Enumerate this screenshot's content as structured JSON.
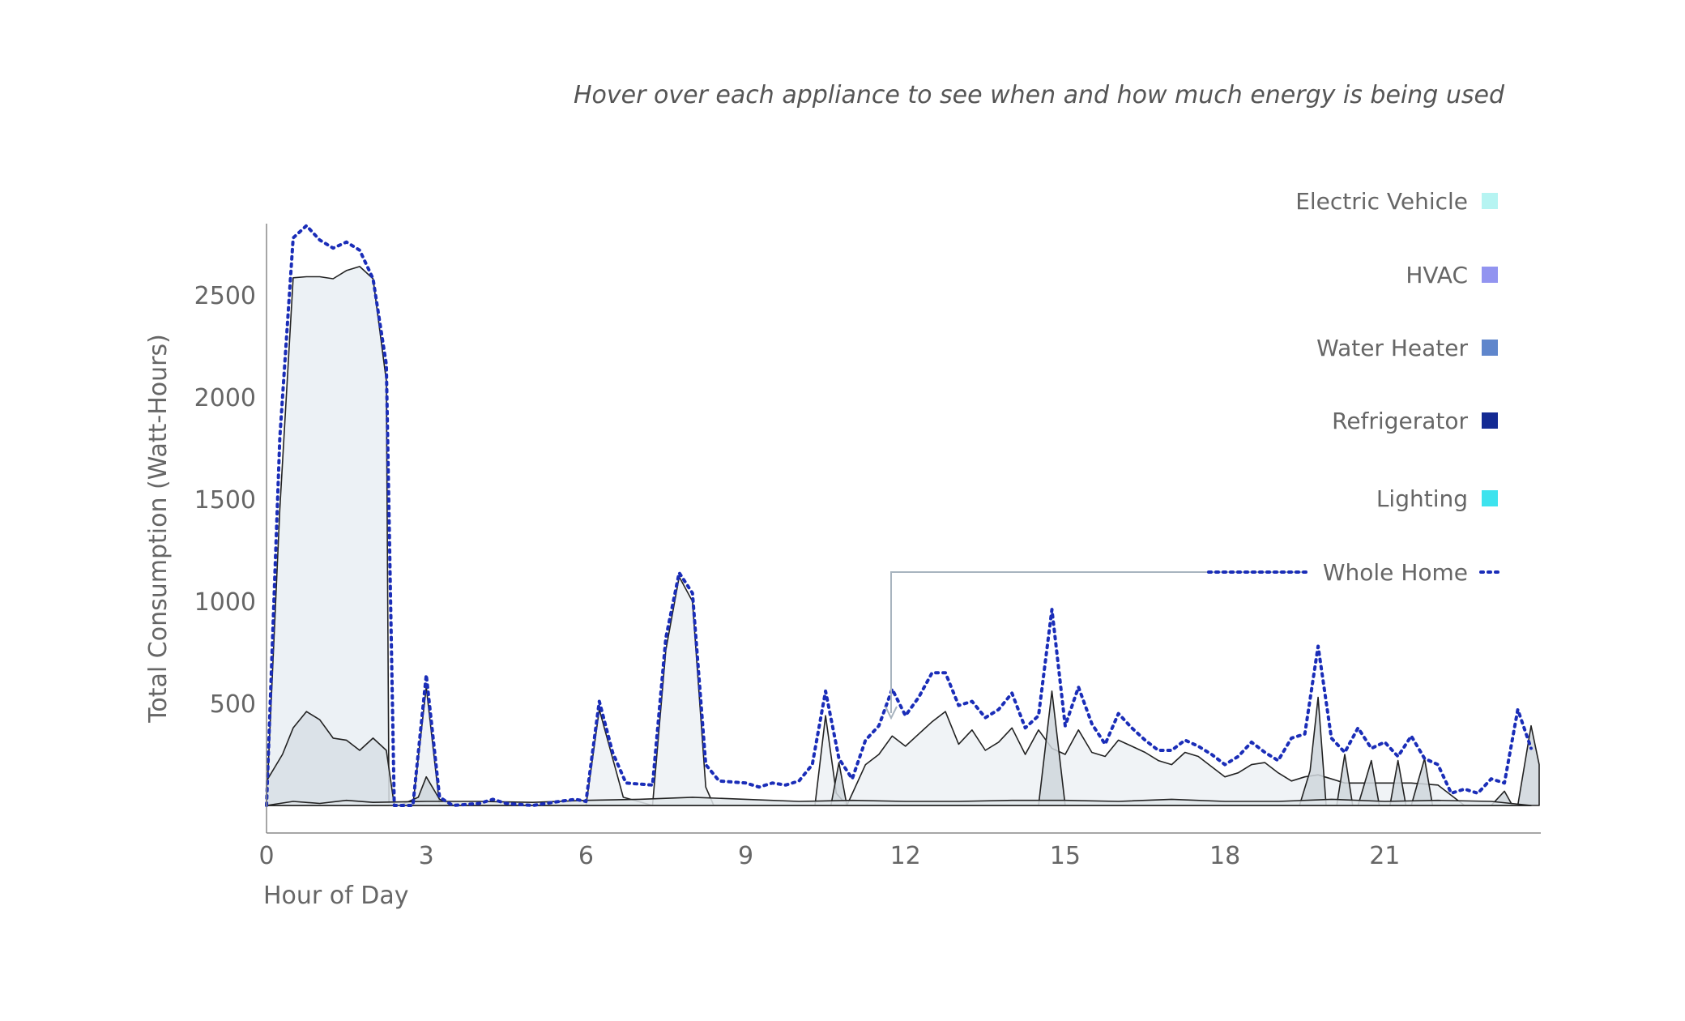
{
  "subtitle": "Hover over each appliance to see when and how much energy is being used",
  "chart_data": {
    "type": "area",
    "title": "",
    "subtitle": "Hover over each appliance to see when and how much energy is being used",
    "xlabel": "Hour of Day",
    "ylabel": "Total Consumption (Watt-Hours)",
    "xlim": [
      0,
      23.75
    ],
    "ylim": [
      0,
      2850
    ],
    "x_ticks": [
      0,
      3,
      6,
      9,
      12,
      15,
      18,
      21
    ],
    "y_ticks": [
      500,
      1000,
      1500,
      2000,
      2500
    ],
    "legend_position": "right",
    "legend": [
      {
        "name": "Electric Vehicle",
        "color": "#b6f4f2"
      },
      {
        "name": "HVAC",
        "color": "#9294f0"
      },
      {
        "name": "Water Heater",
        "color": "#5f86cc"
      },
      {
        "name": "Refrigerator",
        "color": "#142a93"
      },
      {
        "name": "Lighting",
        "color": "#3de3ee"
      },
      {
        "name": "Whole Home",
        "color": "#1a2db8"
      }
    ],
    "series": [
      {
        "name": "Electric Vehicle",
        "color": "#e9eef3",
        "points": [
          [
            0,
            0
          ],
          [
            0.25,
            1450
          ],
          [
            0.5,
            2585
          ],
          [
            0.75,
            2590
          ],
          [
            1,
            2590
          ],
          [
            1.25,
            2580
          ],
          [
            1.5,
            2620
          ],
          [
            1.75,
            2640
          ],
          [
            2,
            2580
          ],
          [
            2.25,
            2080
          ],
          [
            2.3,
            0
          ]
        ]
      },
      {
        "name": "HVAC",
        "color": "#d8dfe5",
        "points": [
          [
            0,
            120
          ],
          [
            0.3,
            250
          ],
          [
            0.5,
            380
          ],
          [
            0.75,
            460
          ],
          [
            1,
            420
          ],
          [
            1.25,
            330
          ],
          [
            1.5,
            320
          ],
          [
            1.75,
            270
          ],
          [
            2,
            330
          ],
          [
            2.25,
            270
          ],
          [
            2.4,
            0
          ]
        ]
      },
      {
        "name": "Water Heater",
        "color": "#edf1f5",
        "points": [
          [
            2.75,
            0
          ],
          [
            3,
            580
          ],
          [
            3.25,
            0
          ],
          [
            6,
            0
          ],
          [
            6.25,
            470
          ],
          [
            6.7,
            40
          ],
          [
            7.25,
            0
          ],
          [
            7.5,
            760
          ],
          [
            7.75,
            1120
          ],
          [
            8,
            1000
          ],
          [
            8.25,
            90
          ],
          [
            8.4,
            0
          ],
          [
            10.3,
            0
          ],
          [
            10.5,
            440
          ],
          [
            10.7,
            60
          ],
          [
            10.9,
            0
          ],
          [
            11.25,
            200
          ],
          [
            11.5,
            250
          ],
          [
            11.75,
            340
          ],
          [
            12,
            290
          ],
          [
            12.25,
            350
          ],
          [
            12.5,
            410
          ],
          [
            12.75,
            460
          ],
          [
            13,
            300
          ],
          [
            13.25,
            370
          ],
          [
            13.5,
            270
          ],
          [
            13.75,
            310
          ],
          [
            14,
            380
          ],
          [
            14.25,
            250
          ],
          [
            14.5,
            370
          ],
          [
            14.75,
            280
          ],
          [
            15,
            250
          ],
          [
            15.25,
            370
          ],
          [
            15.5,
            260
          ],
          [
            15.75,
            240
          ],
          [
            16,
            320
          ],
          [
            16.25,
            290
          ],
          [
            16.5,
            260
          ],
          [
            16.75,
            220
          ],
          [
            17,
            200
          ],
          [
            17.25,
            260
          ],
          [
            17.5,
            240
          ],
          [
            17.75,
            190
          ],
          [
            18,
            140
          ],
          [
            18.25,
            160
          ],
          [
            18.5,
            200
          ],
          [
            18.75,
            210
          ],
          [
            19,
            160
          ],
          [
            19.25,
            120
          ],
          [
            19.5,
            140
          ],
          [
            19.75,
            150
          ],
          [
            20,
            130
          ],
          [
            20.25,
            110
          ],
          [
            20.5,
            110
          ],
          [
            20.75,
            110
          ],
          [
            21,
            110
          ],
          [
            21.25,
            110
          ],
          [
            21.5,
            110
          ],
          [
            22,
            100
          ],
          [
            22.5,
            0
          ],
          [
            23.5,
            0
          ],
          [
            23.75,
            0
          ]
        ]
      },
      {
        "name": "Refrigerator",
        "color": "#cfd6dc",
        "points": [
          [
            2.5,
            0
          ],
          [
            2.85,
            40
          ],
          [
            3,
            140
          ],
          [
            3.25,
            30
          ],
          [
            3.5,
            0
          ],
          [
            10.6,
            0
          ],
          [
            10.75,
            210
          ],
          [
            10.9,
            0
          ],
          [
            14.5,
            0
          ],
          [
            14.75,
            560
          ],
          [
            15,
            0
          ],
          [
            19.4,
            0
          ],
          [
            19.6,
            170
          ],
          [
            19.75,
            530
          ],
          [
            19.9,
            0
          ],
          [
            20.1,
            0
          ],
          [
            20.25,
            250
          ],
          [
            20.4,
            0
          ],
          [
            20.5,
            0
          ],
          [
            20.75,
            220
          ],
          [
            20.9,
            0
          ],
          [
            21.1,
            0
          ],
          [
            21.25,
            220
          ],
          [
            21.4,
            0
          ],
          [
            21.5,
            0
          ],
          [
            21.75,
            230
          ],
          [
            21.9,
            0
          ],
          [
            23,
            0
          ],
          [
            23.25,
            70
          ],
          [
            23.4,
            0
          ],
          [
            23.5,
            0
          ],
          [
            23.75,
            390
          ],
          [
            24,
            200
          ],
          [
            24,
            0
          ]
        ]
      },
      {
        "name": "Lighting",
        "color": "#e2e7eb",
        "points": [
          [
            0,
            0
          ],
          [
            0.5,
            20
          ],
          [
            1,
            10
          ],
          [
            1.5,
            25
          ],
          [
            2,
            15
          ],
          [
            3,
            20
          ],
          [
            4,
            20
          ],
          [
            5,
            15
          ],
          [
            6,
            25
          ],
          [
            7,
            30
          ],
          [
            8,
            40
          ],
          [
            9,
            30
          ],
          [
            10,
            20
          ],
          [
            11,
            25
          ],
          [
            12,
            20
          ],
          [
            13,
            20
          ],
          [
            14,
            25
          ],
          [
            15,
            25
          ],
          [
            16,
            20
          ],
          [
            17,
            30
          ],
          [
            18,
            20
          ],
          [
            19,
            20
          ],
          [
            20,
            30
          ],
          [
            21,
            20
          ],
          [
            22,
            25
          ],
          [
            23,
            20
          ],
          [
            23.75,
            0
          ]
        ]
      }
    ],
    "whole_home": {
      "name": "Whole Home",
      "color": "#1a2db8",
      "points": [
        [
          0,
          0
        ],
        [
          0.25,
          1800
        ],
        [
          0.5,
          2780
        ],
        [
          0.75,
          2840
        ],
        [
          1,
          2770
        ],
        [
          1.25,
          2730
        ],
        [
          1.5,
          2760
        ],
        [
          1.75,
          2720
        ],
        [
          2,
          2580
        ],
        [
          2.25,
          2160
        ],
        [
          2.4,
          0
        ],
        [
          2.75,
          0
        ],
        [
          3,
          640
        ],
        [
          3.25,
          40
        ],
        [
          3.5,
          0
        ],
        [
          4,
          10
        ],
        [
          4.25,
          30
        ],
        [
          4.5,
          10
        ],
        [
          5,
          0
        ],
        [
          5.5,
          20
        ],
        [
          5.8,
          30
        ],
        [
          6,
          20
        ],
        [
          6.25,
          510
        ],
        [
          6.5,
          260
        ],
        [
          6.75,
          110
        ],
        [
          7.25,
          100
        ],
        [
          7.5,
          820
        ],
        [
          7.75,
          1140
        ],
        [
          8,
          1040
        ],
        [
          8.25,
          200
        ],
        [
          8.5,
          120
        ],
        [
          9,
          110
        ],
        [
          9.25,
          90
        ],
        [
          9.5,
          110
        ],
        [
          9.75,
          100
        ],
        [
          10,
          120
        ],
        [
          10.25,
          200
        ],
        [
          10.5,
          560
        ],
        [
          10.75,
          230
        ],
        [
          11,
          130
        ],
        [
          11.25,
          320
        ],
        [
          11.5,
          390
        ],
        [
          11.75,
          570
        ],
        [
          12,
          440
        ],
        [
          12.25,
          530
        ],
        [
          12.5,
          650
        ],
        [
          12.75,
          650
        ],
        [
          13,
          490
        ],
        [
          13.25,
          510
        ],
        [
          13.5,
          430
        ],
        [
          13.75,
          470
        ],
        [
          14,
          550
        ],
        [
          14.25,
          380
        ],
        [
          14.5,
          440
        ],
        [
          14.75,
          960
        ],
        [
          15,
          390
        ],
        [
          15.25,
          580
        ],
        [
          15.5,
          400
        ],
        [
          15.75,
          300
        ],
        [
          16,
          450
        ],
        [
          16.25,
          380
        ],
        [
          16.5,
          320
        ],
        [
          16.75,
          270
        ],
        [
          17,
          270
        ],
        [
          17.25,
          320
        ],
        [
          17.5,
          290
        ],
        [
          17.75,
          250
        ],
        [
          18,
          200
        ],
        [
          18.25,
          240
        ],
        [
          18.5,
          310
        ],
        [
          18.75,
          260
        ],
        [
          19,
          220
        ],
        [
          19.25,
          330
        ],
        [
          19.5,
          350
        ],
        [
          19.75,
          780
        ],
        [
          20,
          330
        ],
        [
          20.25,
          260
        ],
        [
          20.5,
          380
        ],
        [
          20.75,
          280
        ],
        [
          21,
          310
        ],
        [
          21.25,
          240
        ],
        [
          21.5,
          340
        ],
        [
          21.75,
          230
        ],
        [
          22,
          200
        ],
        [
          22.25,
          60
        ],
        [
          22.5,
          80
        ],
        [
          22.75,
          60
        ],
        [
          23,
          130
        ],
        [
          23.25,
          110
        ],
        [
          23.5,
          470
        ],
        [
          23.75,
          280
        ]
      ]
    }
  }
}
